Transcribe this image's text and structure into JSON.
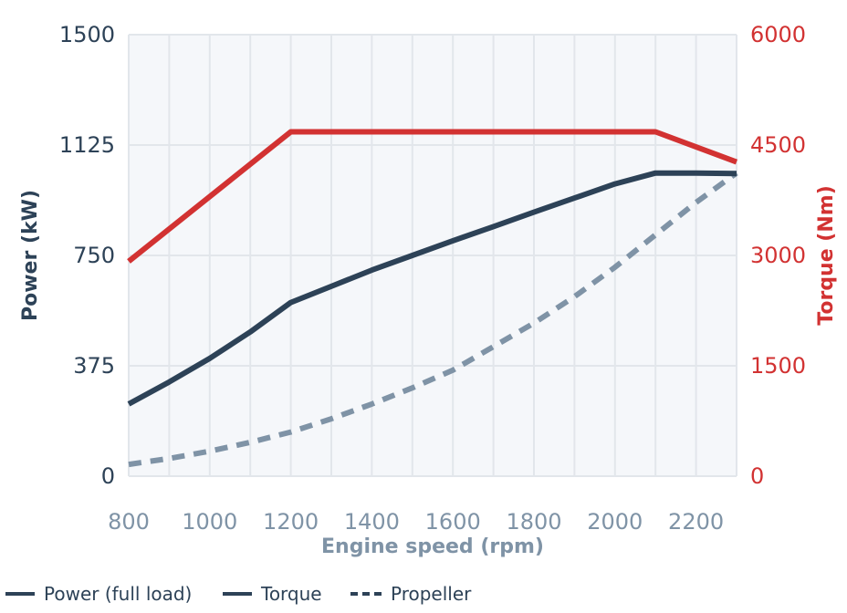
{
  "chart_data": {
    "type": "line",
    "title": "",
    "xlabel": "Engine speed (rpm)",
    "ylabel": "Power (kW)",
    "y2label": "Torque (Nm)",
    "xlim": [
      800,
      2300
    ],
    "ylim": [
      0,
      1500
    ],
    "y2lim": [
      0,
      6000
    ],
    "x_ticks": [
      800,
      1000,
      1200,
      1400,
      1600,
      1800,
      2000,
      2200
    ],
    "y_ticks": [
      0,
      375,
      750,
      1125,
      1500
    ],
    "y2_ticks": [
      0,
      1500,
      3000,
      4500,
      6000
    ],
    "grid": true,
    "legend_position": "bottom-left",
    "series": [
      {
        "name": "Power (full load)",
        "axis": "left",
        "style": "solid",
        "color": "#2d4257",
        "x": [
          800,
          900,
          1000,
          1100,
          1200,
          1300,
          1400,
          1500,
          1600,
          1700,
          1800,
          1900,
          2000,
          2100,
          2200,
          2300
        ],
        "y": [
          245,
          320,
          400,
          490,
          590,
          645,
          700,
          750,
          800,
          848,
          897,
          945,
          993,
          1030,
          1030,
          1028
        ]
      },
      {
        "name": "Torque",
        "axis": "right",
        "style": "solid",
        "color": "#d23232",
        "x": [
          800,
          1200,
          2100,
          2300
        ],
        "y": [
          2920,
          4680,
          4680,
          4270
        ]
      },
      {
        "name": "Propeller",
        "axis": "left",
        "style": "dashed",
        "color": "#7f93a6",
        "x": [
          800,
          900,
          1000,
          1100,
          1200,
          1300,
          1400,
          1500,
          1600,
          1700,
          1800,
          1900,
          2000,
          2100,
          2200,
          2300
        ],
        "y": [
          40,
          60,
          85,
          115,
          150,
          195,
          245,
          300,
          360,
          440,
          520,
          610,
          710,
          820,
          930,
          1030
        ]
      }
    ]
  },
  "colors": {
    "left_axis": "#2d4257",
    "right_axis": "#d23232",
    "x_axis": "#7f93a6",
    "plot_bg": "#f5f7fa",
    "grid": "#e2e6eb",
    "legend_text": "#2d4257"
  }
}
